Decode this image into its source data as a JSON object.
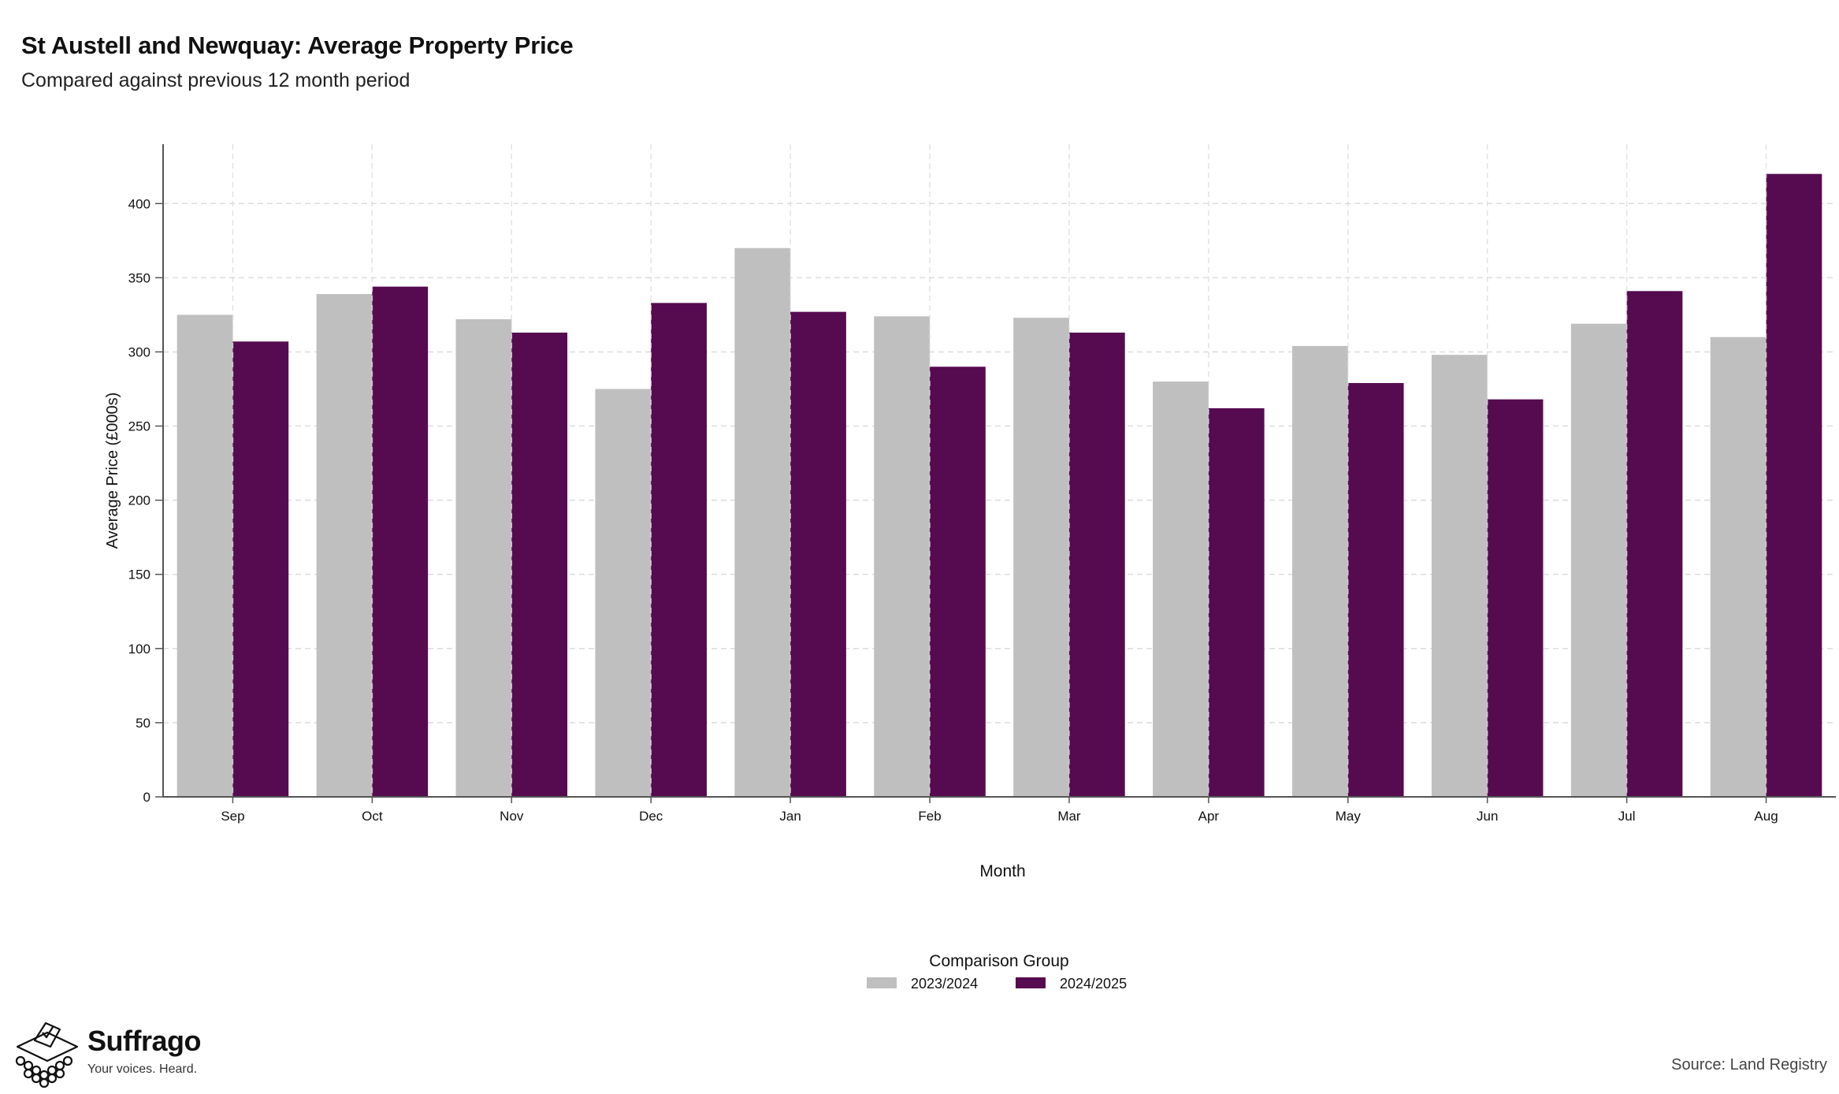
{
  "title": "St Austell and Newquay: Average Property Price",
  "subtitle": "Compared against previous 12 month period",
  "source": "Source: Land Registry",
  "brand": {
    "name": "Suffrago",
    "tagline": "Your voices. Heard.",
    "icon": "ballot-box-icon"
  },
  "colors": {
    "series_2023_2024": "#bfbfbf",
    "series_2024_2025": "#560b50",
    "grid": "#dcdcdc",
    "axis": "#555555"
  },
  "chart_data": {
    "type": "bar",
    "xlabel": "Month",
    "ylabel": "Average Price (£000s)",
    "ylim": [
      0,
      440
    ],
    "yticks": [
      0,
      50,
      100,
      150,
      200,
      250,
      300,
      350,
      400
    ],
    "grid": true,
    "legend_title": "Comparison Group",
    "legend_position": "bottom",
    "categories": [
      "Sep",
      "Oct",
      "Nov",
      "Dec",
      "Jan",
      "Feb",
      "Mar",
      "Apr",
      "May",
      "Jun",
      "Jul",
      "Aug"
    ],
    "series": [
      {
        "name": "2023/2024",
        "values": [
          325,
          339,
          322,
          275,
          370,
          324,
          323,
          280,
          304,
          298,
          319,
          310
        ]
      },
      {
        "name": "2024/2025",
        "values": [
          307,
          344,
          313,
          333,
          327,
          290,
          313,
          262,
          279,
          268,
          341,
          420
        ]
      }
    ]
  }
}
